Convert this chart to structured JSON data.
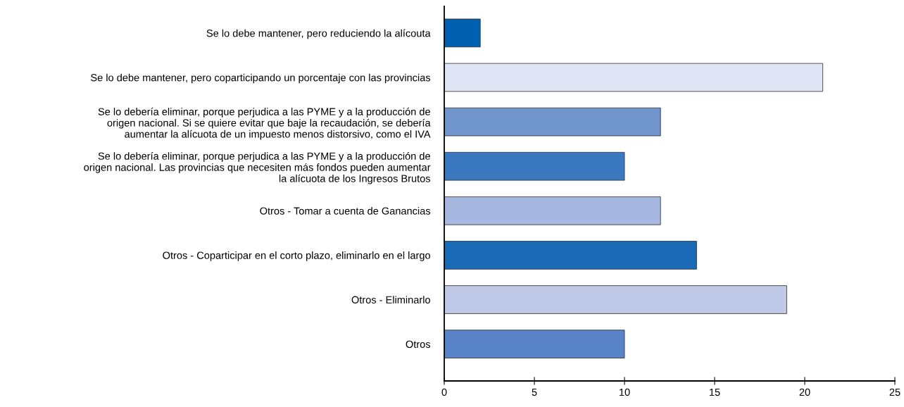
{
  "chart_data": {
    "type": "bar",
    "orientation": "horizontal",
    "categories": [
      "Se lo debe mantener, pero reduciendo la alícouta",
      "Se lo debe mantener, pero coparticipando un porcentaje con las provincias",
      "Se lo debería eliminar, porque perjudica a las PYME y a la producción de\norigen nacional. Si se quiere evitar que baje la recaudación, se debería\naumentar la alícuota de un impuesto menos distorsivo, como el IVA",
      "Se lo debería eliminar, porque perjudica a las PYME y a la producción de\norigen nacional. Las provincias que necesiten más fondos pueden aumentar\nla alícuota de los Ingresos Brutos",
      "Otros - Tomar a cuenta de Ganancias",
      "Otros - Coparticipar en el corto plazo, eliminarlo en el largo",
      "Otros - Eliminarlo",
      "Otros"
    ],
    "values": [
      2,
      21,
      12,
      10,
      12,
      14,
      19,
      10
    ],
    "colors": [
      "#0060b0",
      "#dfe5f5",
      "#7094cc",
      "#3a78c0",
      "#a6b8e0",
      "#1a6ab8",
      "#c0cae8",
      "#5a84c8"
    ],
    "xlim": [
      0,
      25
    ],
    "xticks": [
      0,
      5,
      10,
      15,
      20,
      25
    ],
    "grid": false,
    "legend": false
  }
}
